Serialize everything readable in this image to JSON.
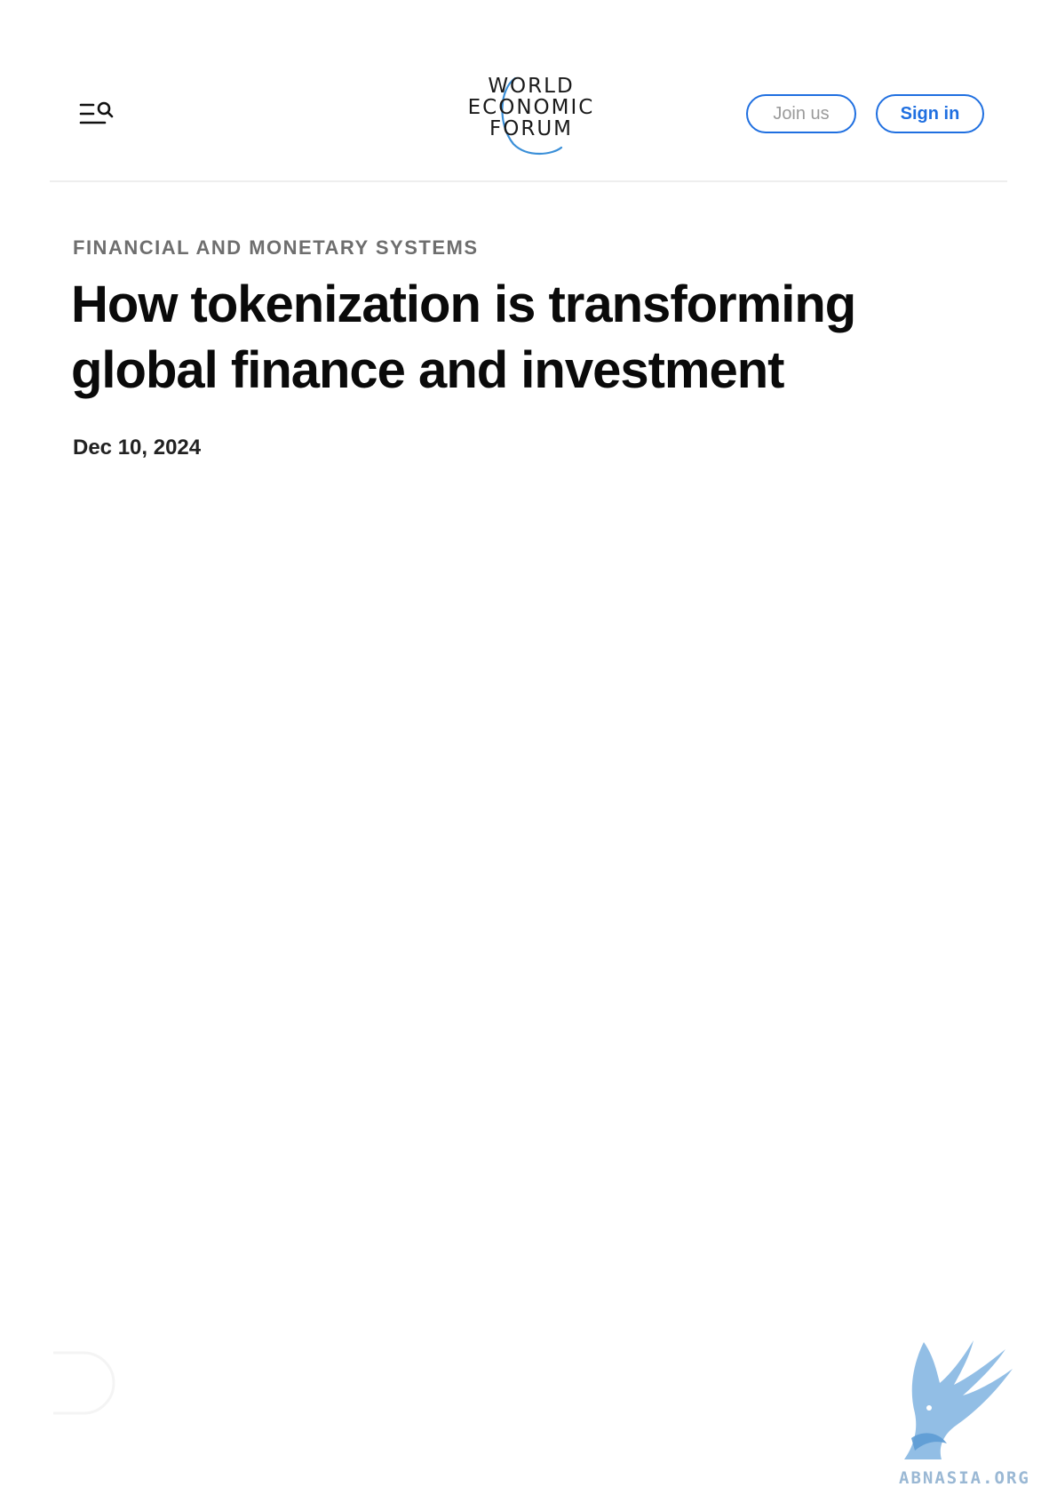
{
  "header": {
    "logo_lines": [
      "WORLD",
      "ECONOMIC",
      "FORUM"
    ],
    "menu_icon": "menu-search-icon",
    "join_label": "Join us",
    "signin_label": "Sign in",
    "accent_color": "#1f6fe0"
  },
  "article": {
    "category": "FINANCIAL AND MONETARY SYSTEMS",
    "title": "How tokenization is transforming global finance and investment",
    "date": "Dec 10, 2024"
  },
  "watermark": {
    "text": "ABNASIA.ORG",
    "icon": "griffin-logo-icon",
    "color": "#7fb3e0"
  }
}
